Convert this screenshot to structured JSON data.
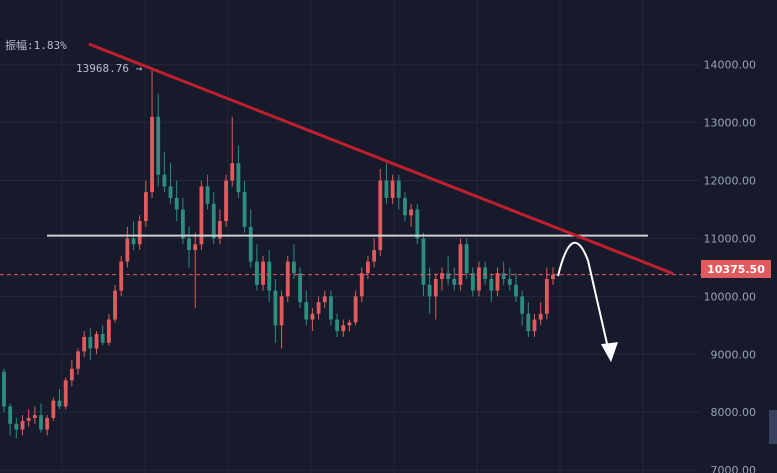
{
  "amplitude": {
    "label": "振幅:1.83%"
  },
  "high_marker": {
    "label": "13968.76 →"
  },
  "current_price": {
    "label": "10375.50"
  },
  "colors": {
    "background": "#161a2b",
    "grid": "#22273a",
    "candle_up": "#e15a5e",
    "candle_down": "#2e8d7e",
    "trendline": "#c0202e",
    "support_line": "#d0d0d0",
    "price_line": "#e15a5e",
    "projection_arrow": "#ffffff"
  },
  "chart_data": {
    "type": "candlestick",
    "y_ticks": [
      "14000.00",
      "13000.00",
      "12000.00",
      "11000.00",
      "10000.00",
      "9000.00",
      "8000.00",
      "7000.00"
    ],
    "ylim": [
      6950,
      14600
    ],
    "current_price": 10375.5,
    "period_high": 13968.76,
    "candles": [
      [
        8700,
        8750,
        8000,
        8100
      ],
      [
        8100,
        8150,
        7600,
        7800
      ],
      [
        7800,
        7900,
        7550,
        7700
      ],
      [
        7700,
        7950,
        7600,
        7850
      ],
      [
        7850,
        8050,
        7750,
        7900
      ],
      [
        7900,
        8100,
        7800,
        7950
      ],
      [
        7950,
        8150,
        7650,
        7700
      ],
      [
        7700,
        7950,
        7600,
        7900
      ],
      [
        7900,
        8250,
        7850,
        8200
      ],
      [
        8200,
        8400,
        8050,
        8100
      ],
      [
        8100,
        8600,
        8050,
        8550
      ],
      [
        8550,
        8900,
        8450,
        8750
      ],
      [
        8750,
        9100,
        8650,
        9050
      ],
      [
        9050,
        9400,
        8950,
        9300
      ],
      [
        9300,
        9450,
        8900,
        9100
      ],
      [
        9100,
        9400,
        9000,
        9350
      ],
      [
        9350,
        9500,
        9150,
        9200
      ],
      [
        9200,
        9700,
        9150,
        9600
      ],
      [
        9600,
        10200,
        9550,
        10100
      ],
      [
        10100,
        10700,
        10000,
        10600
      ],
      [
        10600,
        11200,
        10500,
        11000
      ],
      [
        11000,
        11300,
        10800,
        10900
      ],
      [
        10900,
        11400,
        10800,
        11300
      ],
      [
        11300,
        12000,
        11200,
        11800
      ],
      [
        11800,
        13900,
        11700,
        13100
      ],
      [
        13100,
        13500,
        11900,
        12100
      ],
      [
        12100,
        12500,
        11800,
        11900
      ],
      [
        11900,
        12300,
        11600,
        11700
      ],
      [
        11700,
        12000,
        11300,
        11500
      ],
      [
        11500,
        11700,
        10900,
        11000
      ],
      [
        11000,
        11200,
        10500,
        10800
      ],
      [
        10800,
        11100,
        9800,
        10900
      ],
      [
        10900,
        12000,
        10800,
        11900
      ],
      [
        11900,
        12100,
        11500,
        11600
      ],
      [
        11600,
        11800,
        10900,
        11000
      ],
      [
        11000,
        11500,
        10900,
        11300
      ],
      [
        11300,
        12100,
        11200,
        12000
      ],
      [
        12000,
        13100,
        11900,
        12300
      ],
      [
        12300,
        12600,
        11700,
        11800
      ],
      [
        11800,
        12000,
        11100,
        11200
      ],
      [
        11200,
        11500,
        10500,
        10600
      ],
      [
        10600,
        10900,
        10100,
        10200
      ],
      [
        10200,
        10700,
        10100,
        10600
      ],
      [
        10600,
        10800,
        9900,
        10100
      ],
      [
        10100,
        10300,
        9200,
        9500
      ],
      [
        9500,
        10100,
        9100,
        10000
      ],
      [
        10000,
        10700,
        9900,
        10600
      ],
      [
        10600,
        10900,
        10300,
        10400
      ],
      [
        10400,
        10500,
        9800,
        9900
      ],
      [
        9900,
        10100,
        9500,
        9600
      ],
      [
        9600,
        9800,
        9400,
        9700
      ],
      [
        9700,
        10000,
        9600,
        9900
      ],
      [
        9900,
        10100,
        9800,
        10000
      ],
      [
        10000,
        10100,
        9500,
        9600
      ],
      [
        9600,
        9700,
        9300,
        9400
      ],
      [
        9400,
        9600,
        9300,
        9500
      ],
      [
        9500,
        9600,
        9400,
        9550
      ],
      [
        9550,
        10100,
        9500,
        10000
      ],
      [
        10000,
        10500,
        9900,
        10400
      ],
      [
        10400,
        10700,
        10300,
        10600
      ],
      [
        10600,
        11000,
        10500,
        10800
      ],
      [
        10800,
        12200,
        10700,
        12000
      ],
      [
        12000,
        12300,
        11600,
        11700
      ],
      [
        11700,
        12100,
        11600,
        12000
      ],
      [
        12000,
        12100,
        11500,
        11700
      ],
      [
        11700,
        11800,
        11300,
        11400
      ],
      [
        11400,
        11600,
        11200,
        11500
      ],
      [
        11500,
        11600,
        10900,
        11000
      ],
      [
        11000,
        11100,
        10000,
        10200
      ],
      [
        10200,
        10500,
        9700,
        10000
      ],
      [
        10000,
        10400,
        9600,
        10300
      ],
      [
        10300,
        10500,
        10100,
        10400
      ],
      [
        10400,
        10700,
        10200,
        10300
      ],
      [
        10300,
        10500,
        10100,
        10200
      ],
      [
        10200,
        11000,
        10100,
        10900
      ],
      [
        10900,
        11000,
        10300,
        10400
      ],
      [
        10400,
        10500,
        10000,
        10100
      ],
      [
        10100,
        10600,
        10000,
        10500
      ],
      [
        10500,
        10600,
        10200,
        10300
      ],
      [
        10300,
        10400,
        9900,
        10100
      ],
      [
        10100,
        10500,
        10000,
        10400
      ],
      [
        10400,
        10600,
        10200,
        10300
      ],
      [
        10300,
        10500,
        10100,
        10200
      ],
      [
        10200,
        10400,
        9900,
        10000
      ],
      [
        10000,
        10100,
        9500,
        9700
      ],
      [
        9700,
        9900,
        9300,
        9400
      ],
      [
        9400,
        9700,
        9300,
        9600
      ],
      [
        9600,
        9900,
        9500,
        9700
      ],
      [
        9700,
        10500,
        9600,
        10300
      ],
      [
        10300,
        10500,
        10200,
        10375.5
      ]
    ],
    "trendline": {
      "from": 14350,
      "to": 10400
    },
    "support_level": 11050,
    "projection": {
      "start": 10350,
      "peak": 11000,
      "end": 8900
    }
  }
}
